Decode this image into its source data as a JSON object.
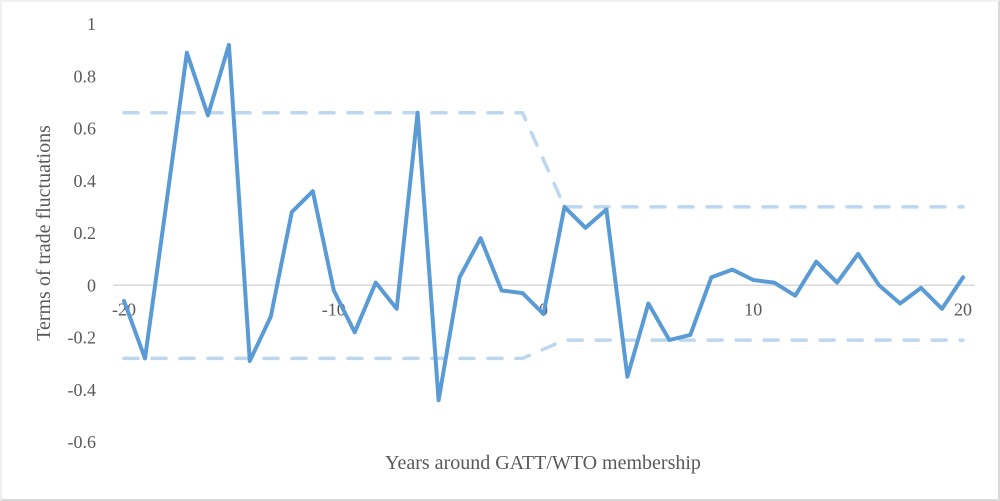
{
  "chart_data": {
    "type": "line",
    "title": "",
    "xlabel": "Years around GATT/WTO membership",
    "ylabel": "Terms of trade fluctuations",
    "xlim": [
      -20,
      20
    ],
    "ylim": [
      -0.6,
      1
    ],
    "grid": false,
    "legend": null,
    "x_ticks": [
      "-20",
      "-10",
      "0",
      "10",
      "20"
    ],
    "y_ticks": [
      "1",
      "0.8",
      "0.6",
      "0.4",
      "0.2",
      "0",
      "-0.2",
      "-0.4",
      "-0.6"
    ],
    "x": [
      -20,
      -19,
      -18,
      -17,
      -16,
      -15,
      -14,
      -13,
      -12,
      -11,
      -10,
      -9,
      -8,
      -7,
      -6,
      -5,
      -4,
      -3,
      -2,
      -1,
      0,
      1,
      2,
      3,
      4,
      5,
      6,
      7,
      8,
      9,
      10,
      11,
      12,
      13,
      14,
      15,
      16,
      17,
      18,
      19,
      20
    ],
    "series": [
      {
        "name": "Terms of trade fluctuations",
        "style": "solid",
        "color": "#5b9bd5",
        "values": [
          -0.06,
          -0.28,
          0.3,
          0.89,
          0.65,
          0.92,
          -0.29,
          -0.12,
          0.28,
          0.36,
          -0.02,
          -0.18,
          0.01,
          -0.09,
          0.66,
          -0.44,
          0.03,
          0.18,
          -0.02,
          -0.03,
          -0.11,
          0.3,
          0.22,
          0.29,
          -0.35,
          -0.07,
          -0.21,
          -0.19,
          0.03,
          0.06,
          0.02,
          0.01,
          -0.04,
          0.09,
          0.01,
          0.12,
          0.0,
          -0.07,
          -0.01,
          -0.09,
          0.03
        ]
      },
      {
        "name": "Upper band",
        "style": "dashed",
        "color": "#bdd7ee",
        "points": [
          [
            -20,
            0.66
          ],
          [
            -1,
            0.66
          ],
          [
            1,
            0.3
          ],
          [
            20,
            0.3
          ]
        ]
      },
      {
        "name": "Lower band",
        "style": "dashed",
        "color": "#bdd7ee",
        "points": [
          [
            -20,
            -0.28
          ],
          [
            -1,
            -0.28
          ],
          [
            1,
            -0.21
          ],
          [
            20,
            -0.21
          ]
        ]
      }
    ]
  }
}
